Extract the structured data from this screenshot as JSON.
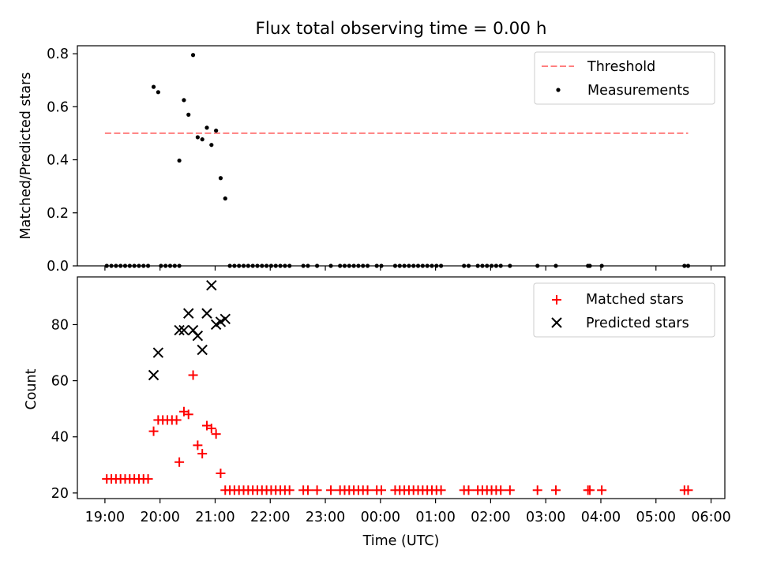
{
  "figure": {
    "title": "Flux total observing time = 0.00 h"
  },
  "chart_data": [
    {
      "type": "scatter",
      "panel": "top",
      "title": "Flux total observing time = 0.00 h",
      "xlabel": "",
      "ylabel": "Matched/Predicted stars",
      "xlim_hours": [
        18.5,
        30.25
      ],
      "ylim": [
        0,
        0.83
      ],
      "yticks": [
        0.0,
        0.2,
        0.4,
        0.6,
        0.8
      ],
      "ytick_labels": [
        "0.0",
        "0.2",
        "0.4",
        "0.6",
        "0.8"
      ],
      "grid": false,
      "legend_position": "upper right",
      "threshold": {
        "name": "Threshold",
        "value": 0.5,
        "x_range": [
          "19:00",
          "05:35"
        ],
        "color": "#ff7f7f"
      },
      "series": [
        {
          "name": "Measurements",
          "color": "#000000",
          "marker": "dot",
          "points": [
            {
              "x": "19:02",
              "y": 0.0
            },
            {
              "x": "19:07",
              "y": 0.0
            },
            {
              "x": "19:12",
              "y": 0.0
            },
            {
              "x": "19:17",
              "y": 0.0
            },
            {
              "x": "19:22",
              "y": 0.0
            },
            {
              "x": "19:27",
              "y": 0.0
            },
            {
              "x": "19:32",
              "y": 0.0
            },
            {
              "x": "19:37",
              "y": 0.0
            },
            {
              "x": "19:42",
              "y": 0.0
            },
            {
              "x": "19:47",
              "y": 0.0
            },
            {
              "x": "19:53",
              "y": 0.675
            },
            {
              "x": "19:58",
              "y": 0.655
            },
            {
              "x": "20:01",
              "y": 0.0
            },
            {
              "x": "20:06",
              "y": 0.0
            },
            {
              "x": "20:11",
              "y": 0.0
            },
            {
              "x": "20:16",
              "y": 0.0
            },
            {
              "x": "20:21",
              "y": 0.0
            },
            {
              "x": "20:21",
              "y": 0.397
            },
            {
              "x": "20:26",
              "y": 0.625
            },
            {
              "x": "20:31",
              "y": 0.57
            },
            {
              "x": "20:36",
              "y": 0.795
            },
            {
              "x": "20:41",
              "y": 0.485
            },
            {
              "x": "20:46",
              "y": 0.477
            },
            {
              "x": "20:51",
              "y": 0.521
            },
            {
              "x": "20:56",
              "y": 0.456
            },
            {
              "x": "21:01",
              "y": 0.51
            },
            {
              "x": "21:06",
              "y": 0.331
            },
            {
              "x": "21:11",
              "y": 0.254
            },
            {
              "x": "21:16",
              "y": 0.0
            },
            {
              "x": "21:21",
              "y": 0.0
            },
            {
              "x": "21:26",
              "y": 0.0
            },
            {
              "x": "21:31",
              "y": 0.0
            },
            {
              "x": "21:36",
              "y": 0.0
            },
            {
              "x": "21:41",
              "y": 0.0
            },
            {
              "x": "21:46",
              "y": 0.0
            },
            {
              "x": "21:51",
              "y": 0.0
            },
            {
              "x": "21:56",
              "y": 0.0
            },
            {
              "x": "22:01",
              "y": 0.0
            },
            {
              "x": "22:06",
              "y": 0.0
            },
            {
              "x": "22:11",
              "y": 0.0
            },
            {
              "x": "22:16",
              "y": 0.0
            },
            {
              "x": "22:21",
              "y": 0.0
            },
            {
              "x": "22:36",
              "y": 0.0
            },
            {
              "x": "22:41",
              "y": 0.0
            },
            {
              "x": "22:51",
              "y": 0.0
            },
            {
              "x": "23:06",
              "y": 0.0
            },
            {
              "x": "23:16",
              "y": 0.0
            },
            {
              "x": "23:21",
              "y": 0.0
            },
            {
              "x": "23:26",
              "y": 0.0
            },
            {
              "x": "23:31",
              "y": 0.0
            },
            {
              "x": "23:36",
              "y": 0.0
            },
            {
              "x": "23:41",
              "y": 0.0
            },
            {
              "x": "23:46",
              "y": 0.0
            },
            {
              "x": "23:56",
              "y": 0.0
            },
            {
              "x": "00:01",
              "y": 0.0
            },
            {
              "x": "00:16",
              "y": 0.0
            },
            {
              "x": "00:21",
              "y": 0.0
            },
            {
              "x": "00:26",
              "y": 0.0
            },
            {
              "x": "00:31",
              "y": 0.0
            },
            {
              "x": "00:36",
              "y": 0.0
            },
            {
              "x": "00:41",
              "y": 0.0
            },
            {
              "x": "00:46",
              "y": 0.0
            },
            {
              "x": "00:51",
              "y": 0.0
            },
            {
              "x": "00:56",
              "y": 0.0
            },
            {
              "x": "01:01",
              "y": 0.0
            },
            {
              "x": "01:06",
              "y": 0.0
            },
            {
              "x": "01:31",
              "y": 0.0
            },
            {
              "x": "01:36",
              "y": 0.0
            },
            {
              "x": "01:46",
              "y": 0.0
            },
            {
              "x": "01:51",
              "y": 0.0
            },
            {
              "x": "01:56",
              "y": 0.0
            },
            {
              "x": "02:01",
              "y": 0.0
            },
            {
              "x": "02:06",
              "y": 0.0
            },
            {
              "x": "02:11",
              "y": 0.0
            },
            {
              "x": "02:21",
              "y": 0.0
            },
            {
              "x": "02:51",
              "y": 0.0
            },
            {
              "x": "03:11",
              "y": 0.0
            },
            {
              "x": "03:46",
              "y": 0.0
            },
            {
              "x": "03:48",
              "y": 0.0
            },
            {
              "x": "04:01",
              "y": 0.0
            },
            {
              "x": "05:31",
              "y": 0.0
            },
            {
              "x": "05:35",
              "y": 0.0
            }
          ]
        }
      ]
    },
    {
      "type": "scatter",
      "panel": "bottom",
      "xlabel": "Time (UTC)",
      "ylabel": "Count",
      "xlim_hours": [
        18.5,
        30.25
      ],
      "ylim": [
        18,
        97
      ],
      "yticks": [
        20,
        40,
        60,
        80
      ],
      "ytick_labels": [
        "20",
        "40",
        "60",
        "80"
      ],
      "xticks": [
        "19:00",
        "20:00",
        "21:00",
        "22:00",
        "23:00",
        "00:00",
        "01:00",
        "02:00",
        "03:00",
        "04:00",
        "05:00",
        "06:00"
      ],
      "grid": false,
      "legend_position": "upper right",
      "series": [
        {
          "name": "Matched stars",
          "color": "#ff0000",
          "marker": "plus",
          "points": [
            {
              "x": "19:02",
              "y": 25
            },
            {
              "x": "19:07",
              "y": 25
            },
            {
              "x": "19:12",
              "y": 25
            },
            {
              "x": "19:17",
              "y": 25
            },
            {
              "x": "19:22",
              "y": 25
            },
            {
              "x": "19:27",
              "y": 25
            },
            {
              "x": "19:32",
              "y": 25
            },
            {
              "x": "19:37",
              "y": 25
            },
            {
              "x": "19:42",
              "y": 25
            },
            {
              "x": "19:47",
              "y": 25
            },
            {
              "x": "19:53",
              "y": 42
            },
            {
              "x": "19:58",
              "y": 46
            },
            {
              "x": "20:03",
              "y": 46
            },
            {
              "x": "20:08",
              "y": 46
            },
            {
              "x": "20:13",
              "y": 46
            },
            {
              "x": "20:18",
              "y": 46
            },
            {
              "x": "20:21",
              "y": 31
            },
            {
              "x": "20:26",
              "y": 49
            },
            {
              "x": "20:31",
              "y": 48
            },
            {
              "x": "20:36",
              "y": 62
            },
            {
              "x": "20:41",
              "y": 37
            },
            {
              "x": "20:46",
              "y": 34
            },
            {
              "x": "20:51",
              "y": 44
            },
            {
              "x": "20:56",
              "y": 43
            },
            {
              "x": "21:01",
              "y": 41
            },
            {
              "x": "21:06",
              "y": 27
            },
            {
              "x": "21:11",
              "y": 21
            },
            {
              "x": "21:16",
              "y": 21
            },
            {
              "x": "21:21",
              "y": 21
            },
            {
              "x": "21:26",
              "y": 21
            },
            {
              "x": "21:31",
              "y": 21
            },
            {
              "x": "21:36",
              "y": 21
            },
            {
              "x": "21:41",
              "y": 21
            },
            {
              "x": "21:46",
              "y": 21
            },
            {
              "x": "21:51",
              "y": 21
            },
            {
              "x": "21:56",
              "y": 21
            },
            {
              "x": "22:01",
              "y": 21
            },
            {
              "x": "22:06",
              "y": 21
            },
            {
              "x": "22:11",
              "y": 21
            },
            {
              "x": "22:16",
              "y": 21
            },
            {
              "x": "22:21",
              "y": 21
            },
            {
              "x": "22:36",
              "y": 21
            },
            {
              "x": "22:41",
              "y": 21
            },
            {
              "x": "22:51",
              "y": 21
            },
            {
              "x": "23:06",
              "y": 21
            },
            {
              "x": "23:16",
              "y": 21
            },
            {
              "x": "23:21",
              "y": 21
            },
            {
              "x": "23:26",
              "y": 21
            },
            {
              "x": "23:31",
              "y": 21
            },
            {
              "x": "23:36",
              "y": 21
            },
            {
              "x": "23:41",
              "y": 21
            },
            {
              "x": "23:46",
              "y": 21
            },
            {
              "x": "23:56",
              "y": 21
            },
            {
              "x": "00:01",
              "y": 21
            },
            {
              "x": "00:16",
              "y": 21
            },
            {
              "x": "00:21",
              "y": 21
            },
            {
              "x": "00:26",
              "y": 21
            },
            {
              "x": "00:31",
              "y": 21
            },
            {
              "x": "00:36",
              "y": 21
            },
            {
              "x": "00:41",
              "y": 21
            },
            {
              "x": "00:46",
              "y": 21
            },
            {
              "x": "00:51",
              "y": 21
            },
            {
              "x": "00:56",
              "y": 21
            },
            {
              "x": "01:01",
              "y": 21
            },
            {
              "x": "01:06",
              "y": 21
            },
            {
              "x": "01:31",
              "y": 21
            },
            {
              "x": "01:36",
              "y": 21
            },
            {
              "x": "01:46",
              "y": 21
            },
            {
              "x": "01:51",
              "y": 21
            },
            {
              "x": "01:56",
              "y": 21
            },
            {
              "x": "02:01",
              "y": 21
            },
            {
              "x": "02:06",
              "y": 21
            },
            {
              "x": "02:11",
              "y": 21
            },
            {
              "x": "02:21",
              "y": 21
            },
            {
              "x": "02:51",
              "y": 21
            },
            {
              "x": "03:11",
              "y": 21
            },
            {
              "x": "03:46",
              "y": 21
            },
            {
              "x": "03:48",
              "y": 21
            },
            {
              "x": "04:01",
              "y": 21
            },
            {
              "x": "05:31",
              "y": 21
            },
            {
              "x": "05:35",
              "y": 21
            }
          ]
        },
        {
          "name": "Predicted stars",
          "color": "#000000",
          "marker": "x",
          "points": [
            {
              "x": "19:53",
              "y": 62
            },
            {
              "x": "19:58",
              "y": 70
            },
            {
              "x": "20:21",
              "y": 78
            },
            {
              "x": "20:26",
              "y": 78
            },
            {
              "x": "20:31",
              "y": 84
            },
            {
              "x": "20:36",
              "y": 78
            },
            {
              "x": "20:41",
              "y": 76
            },
            {
              "x": "20:46",
              "y": 71
            },
            {
              "x": "20:51",
              "y": 84
            },
            {
              "x": "20:56",
              "y": 94
            },
            {
              "x": "21:01",
              "y": 80
            },
            {
              "x": "21:06",
              "y": 81
            },
            {
              "x": "21:11",
              "y": 82
            }
          ]
        }
      ]
    }
  ]
}
